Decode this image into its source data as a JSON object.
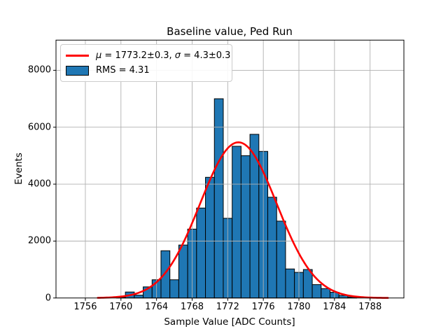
{
  "figure": {
    "background": "#ffffff"
  },
  "chart_data": {
    "type": "bar",
    "subtype": "histogram",
    "title": "Baseline value, Ped Run",
    "xlabel": "Sample Value [ADC Counts]",
    "ylabel": "Events",
    "categories": [
      1760,
      1761,
      1762,
      1763,
      1764,
      1765,
      1766,
      1767,
      1768,
      1769,
      1770,
      1771,
      1772,
      1773,
      1774,
      1775,
      1776,
      1777,
      1778,
      1779,
      1780,
      1781,
      1782,
      1783,
      1784,
      1785,
      1786
    ],
    "values": [
      25,
      210,
      100,
      390,
      640,
      1660,
      640,
      1860,
      2420,
      3160,
      4240,
      7000,
      2800,
      5330,
      5000,
      5750,
      5150,
      3540,
      2700,
      1020,
      900,
      1000,
      470,
      330,
      200,
      90,
      35
    ],
    "bin_width": 1,
    "xlim": [
      1752.7,
      1791.8
    ],
    "ylim": [
      0,
      9060
    ],
    "xticks": [
      1756,
      1760,
      1764,
      1768,
      1772,
      1776,
      1780,
      1784,
      1788
    ],
    "yticks": [
      0,
      2000,
      4000,
      6000,
      8000
    ],
    "grid": true,
    "legend_position": "upper left",
    "bar_color": "#1f77b4",
    "bar_edge_color": "#000000",
    "grid_color": "#b0b0b0",
    "fit_color": "#ff0000",
    "fit": {
      "type": "gaussian",
      "mu": 1773.2,
      "sigma": 4.3,
      "amplitude": 5470,
      "x_start": 1757.4,
      "x_end": 1790.0
    },
    "legend": {
      "entries": [
        {
          "swatch": "red-line",
          "label_full": "μ = 1773.2±0.3, σ = 4.3±0.3",
          "mu_symbol": "μ",
          "mu_rest": " = 1773.2±0.3, ",
          "sigma_symbol": "σ",
          "sigma_rest": " = 4.3±0.3"
        },
        {
          "swatch": "blue-patch",
          "label": "RMS = 4.31"
        }
      ]
    }
  }
}
